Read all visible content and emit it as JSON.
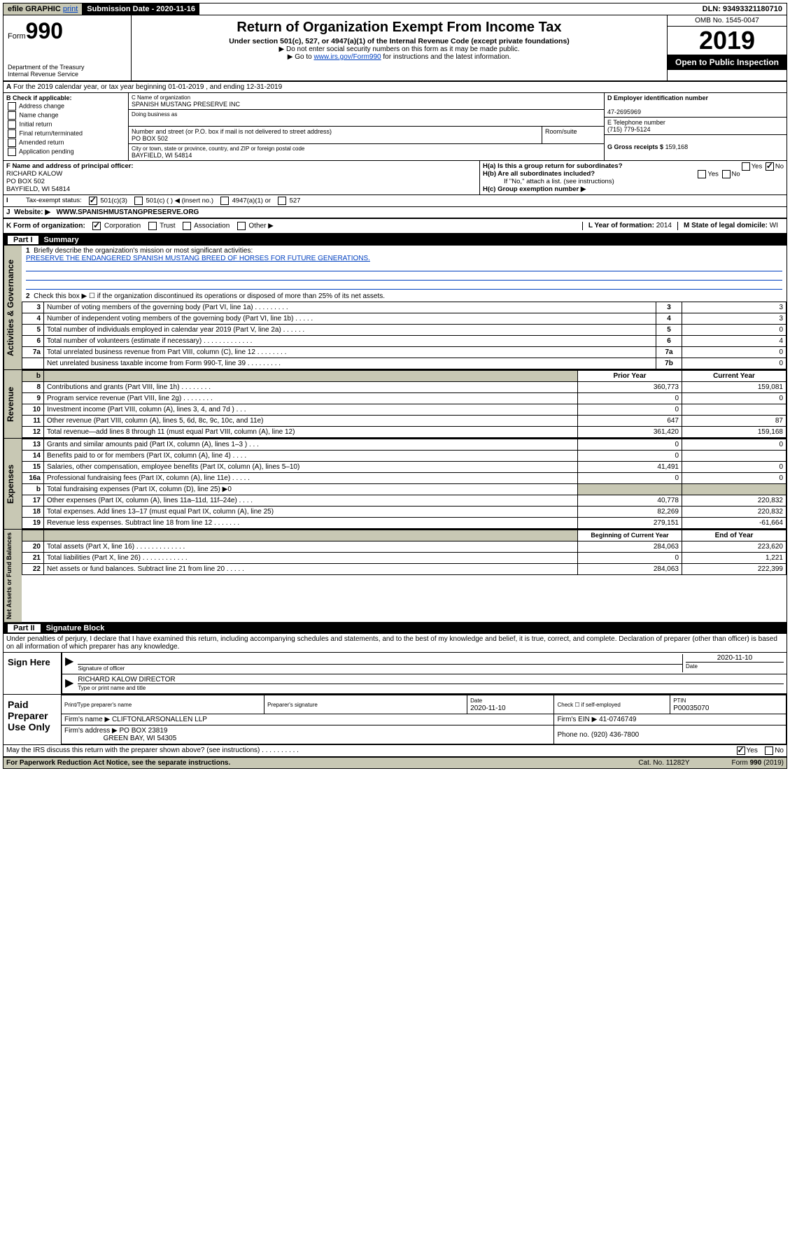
{
  "topbar": {
    "efile_prefix": "efile",
    "efile_graphic": "GRAPHIC",
    "efile_print": "print",
    "submission_label": "Submission Date - 2020-11-16",
    "dln": "DLN: 93493321180710"
  },
  "header": {
    "form_word": "Form",
    "form_num": "990",
    "dept": "Department of the Treasury\nInternal Revenue Service",
    "title": "Return of Organization Exempt From Income Tax",
    "subtitle": "Under section 501(c), 527, or 4947(a)(1) of the Internal Revenue Code (except private foundations)",
    "note1": "▶ Do not enter social security numbers on this form as it may be made public.",
    "note2_pre": "▶ Go to ",
    "note2_link": "www.irs.gov/Form990",
    "note2_post": " for instructions and the latest information.",
    "omb": "OMB No. 1545-0047",
    "year": "2019",
    "open": "Open to Public Inspection"
  },
  "a_line": "For the 2019 calendar year, or tax year beginning 01-01-2019    , and ending 12-31-2019",
  "b": {
    "header": "B Check if applicable:",
    "items": [
      "Address change",
      "Name change",
      "Initial return",
      "Final return/terminated",
      "Amended return",
      "Application pending"
    ]
  },
  "c": {
    "name_label": "C Name of organization",
    "name": "SPANISH MUSTANG PRESERVE INC",
    "dba_label": "Doing business as",
    "street_label": "Number and street (or P.O. box if mail is not delivered to street address)",
    "room_label": "Room/suite",
    "street": "PO BOX 502",
    "city_label": "City or town, state or province, country, and ZIP or foreign postal code",
    "city": "BAYFIELD, WI  54814"
  },
  "d": {
    "label": "D Employer identification number",
    "value": "47-2695969"
  },
  "e": {
    "label": "E Telephone number",
    "value": "(715) 779-5124"
  },
  "g": {
    "label": "G Gross receipts $",
    "value": "159,168"
  },
  "f": {
    "label": "F  Name and address of principal officer:",
    "name": "RICHARD KALOW",
    "addr1": "PO BOX 502",
    "addr2": "BAYFIELD, WI  54814"
  },
  "h": {
    "a": "H(a)  Is this a group return for subordinates?",
    "b": "H(b)  Are all subordinates included?",
    "b_note": "If \"No,\" attach a list. (see instructions)",
    "c": "H(c)  Group exemption number ▶",
    "yes": "Yes",
    "no": "No"
  },
  "i": {
    "label": "Tax-exempt status:",
    "opts": [
      "501(c)(3)",
      "501(c) (   ) ◀ (insert no.)",
      "4947(a)(1) or",
      "527"
    ]
  },
  "j": {
    "label": "Website: ▶",
    "value": "WWW.SPANISHMUSTANGPRESERVE.ORG"
  },
  "k": {
    "label": "K Form of organization:",
    "opts": [
      "Corporation",
      "Trust",
      "Association",
      "Other ▶"
    ]
  },
  "l": {
    "label": "L Year of formation:",
    "value": "2014"
  },
  "m": {
    "label": "M State of legal domicile:",
    "value": "WI"
  },
  "part1": {
    "header": "Part I",
    "title": "Summary",
    "line1_label": "Briefly describe the organization's mission or most significant activities:",
    "line1_text": "PRESERVE THE ENDANGERED SPANISH MUSTANG BREED OF HORSES FOR FUTURE GENERATIONS.",
    "line2": "Check this box ▶ ☐  if the organization discontinued its operations or disposed of more than 25% of its net assets.",
    "rows_gov": [
      {
        "n": "3",
        "t": "Number of voting members of the governing body (Part VI, line 1a)   .   .   .   .   .   .   .   .   .",
        "b": "3",
        "v": "3"
      },
      {
        "n": "4",
        "t": "Number of independent voting members of the governing body (Part VI, line 1b)   .   .   .   .   .",
        "b": "4",
        "v": "3"
      },
      {
        "n": "5",
        "t": "Total number of individuals employed in calendar year 2019 (Part V, line 2a)   .   .   .   .   .   .",
        "b": "5",
        "v": "0"
      },
      {
        "n": "6",
        "t": "Total number of volunteers (estimate if necessary)   .   .   .   .   .   .   .   .   .   .   .   .   .",
        "b": "6",
        "v": "4"
      },
      {
        "n": "7a",
        "t": "Total unrelated business revenue from Part VIII, column (C), line 12   .   .   .   .   .   .   .   .",
        "b": "7a",
        "v": "0"
      },
      {
        "n": "",
        "t": "Net unrelated business taxable income from Form 990-T, line 39   .   .   .   .   .   .   .   .   .",
        "b": "7b",
        "v": "0"
      }
    ],
    "col_prior": "Prior Year",
    "col_current": "Current Year",
    "rows_rev": [
      {
        "n": "8",
        "t": "Contributions and grants (Part VIII, line 1h)   .   .   .   .   .   .   .   .",
        "p": "360,773",
        "c": "159,081"
      },
      {
        "n": "9",
        "t": "Program service revenue (Part VIII, line 2g)   .   .   .   .   .   .   .   .",
        "p": "0",
        "c": "0"
      },
      {
        "n": "10",
        "t": "Investment income (Part VIII, column (A), lines 3, 4, and 7d )   .   .   .",
        "p": "0",
        "c": ""
      },
      {
        "n": "11",
        "t": "Other revenue (Part VIII, column (A), lines 5, 6d, 8c, 9c, 10c, and 11e)",
        "p": "647",
        "c": "87"
      },
      {
        "n": "12",
        "t": "Total revenue—add lines 8 through 11 (must equal Part VIII, column (A), line 12)",
        "p": "361,420",
        "c": "159,168"
      }
    ],
    "rows_exp": [
      {
        "n": "13",
        "t": "Grants and similar amounts paid (Part IX, column (A), lines 1–3 )   .   .   .",
        "p": "0",
        "c": "0"
      },
      {
        "n": "14",
        "t": "Benefits paid to or for members (Part IX, column (A), line 4)   .   .   .   .",
        "p": "0",
        "c": ""
      },
      {
        "n": "15",
        "t": "Salaries, other compensation, employee benefits (Part IX, column (A), lines 5–10)",
        "p": "41,491",
        "c": "0"
      },
      {
        "n": "16a",
        "t": "Professional fundraising fees (Part IX, column (A), line 11e)   .   .   .   .   .",
        "p": "0",
        "c": "0"
      },
      {
        "n": "b",
        "t": "Total fundraising expenses (Part IX, column (D), line 25) ▶0",
        "p": "",
        "c": "",
        "grey": true
      },
      {
        "n": "17",
        "t": "Other expenses (Part IX, column (A), lines 11a–11d, 11f–24e)   .   .   .   .",
        "p": "40,778",
        "c": "220,832"
      },
      {
        "n": "18",
        "t": "Total expenses. Add lines 13–17 (must equal Part IX, column (A), line 25)",
        "p": "82,269",
        "c": "220,832"
      },
      {
        "n": "19",
        "t": "Revenue less expenses. Subtract line 18 from line 12   .   .   .   .   .   .   .",
        "p": "279,151",
        "c": "-61,664"
      }
    ],
    "col_begin": "Beginning of Current Year",
    "col_end": "End of Year",
    "rows_net": [
      {
        "n": "20",
        "t": "Total assets (Part X, line 16)   .   .   .   .   .   .   .   .   .   .   .   .   .",
        "p": "284,063",
        "c": "223,620"
      },
      {
        "n": "21",
        "t": "Total liabilities (Part X, line 26)   .   .   .   .   .   .   .   .   .   .   .   .",
        "p": "0",
        "c": "1,221"
      },
      {
        "n": "22",
        "t": "Net assets or fund balances. Subtract line 21 from line 20   .   .   .   .   .",
        "p": "284,063",
        "c": "222,399"
      }
    ],
    "side_gov": "Activities & Governance",
    "side_rev": "Revenue",
    "side_exp": "Expenses",
    "side_net": "Net Assets or Fund Balances"
  },
  "part2": {
    "header": "Part II",
    "title": "Signature Block",
    "perjury": "Under penalties of perjury, I declare that I have examined this return, including accompanying schedules and statements, and to the best of my knowledge and belief, it is true, correct, and complete. Declaration of preparer (other than officer) is based on all information of which preparer has any knowledge.",
    "sign_here": "Sign Here",
    "sig_officer": "Signature of officer",
    "sig_date": "2020-11-10",
    "sig_date_label": "Date",
    "officer_name": "RICHARD KALOW  DIRECTOR",
    "officer_name_label": "Type or print name and title",
    "paid": "Paid Preparer Use Only",
    "prep_name_h": "Print/Type preparer's name",
    "prep_sig_h": "Preparer's signature",
    "prep_date_h": "Date",
    "prep_date": "2020-11-10",
    "prep_check": "Check ☐ if self-employed",
    "ptin_h": "PTIN",
    "ptin": "P00035070",
    "firm_name_l": "Firm's name      ▶",
    "firm_name": "CLIFTONLARSONALLEN LLP",
    "firm_ein_l": "Firm's EIN ▶",
    "firm_ein": "41-0746749",
    "firm_addr_l": "Firm's address ▶",
    "firm_addr": "PO BOX 23819",
    "firm_city": "GREEN BAY, WI  54305",
    "phone_l": "Phone no.",
    "phone": "(920) 436-7800"
  },
  "footer": {
    "discuss": "May the IRS discuss this return with the preparer shown above? (see instructions)   .   .   .   .   .   .   .   .   .   .",
    "yes": "Yes",
    "no": "No",
    "paperwork": "For Paperwork Reduction Act Notice, see the separate instructions.",
    "cat": "Cat. No. 11282Y",
    "form": "Form 990 (2019)"
  }
}
